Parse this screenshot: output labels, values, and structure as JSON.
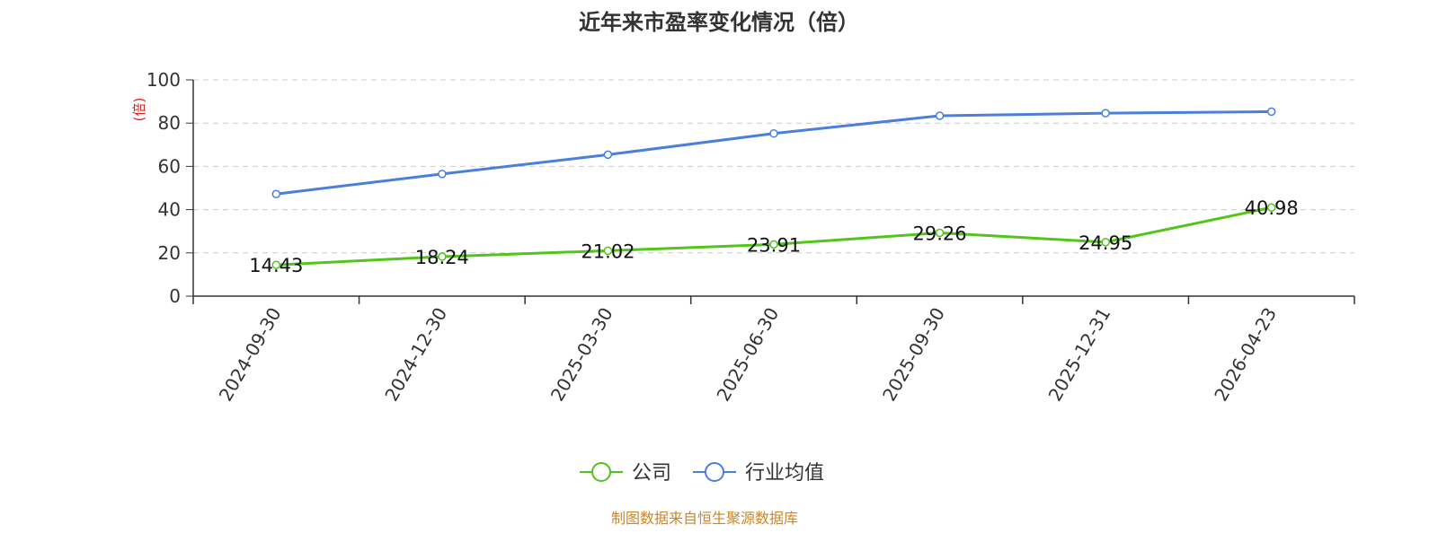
{
  "chart_data": {
    "type": "line",
    "title": "近年来市盈率变化情况（倍）",
    "ylabel": "(倍)",
    "xlabel": "",
    "ylim": [
      0,
      100
    ],
    "yticks": [
      0,
      20,
      40,
      60,
      80,
      100
    ],
    "grid": true,
    "legend_position": "bottom",
    "categories": [
      "2024-09-30",
      "2024-12-30",
      "2025-03-30",
      "2025-06-30",
      "2025-09-30",
      "2025-12-31",
      "2026-04-23"
    ],
    "series": [
      {
        "name": "公司",
        "values": [
          14.43,
          18.24,
          21.02,
          23.91,
          29.26,
          24.95,
          40.98
        ],
        "color": "#52c41a",
        "show_labels": true
      },
      {
        "name": "行业均值",
        "values": [
          47.2,
          56.5,
          65.4,
          75.2,
          83.4,
          84.6,
          85.3
        ],
        "color": "#4a7fdb",
        "show_labels": false
      }
    ],
    "ylabel_color": "#e02020",
    "source_text": "制图数据来自恒生聚源数据库",
    "source_color": "#c8862a"
  }
}
